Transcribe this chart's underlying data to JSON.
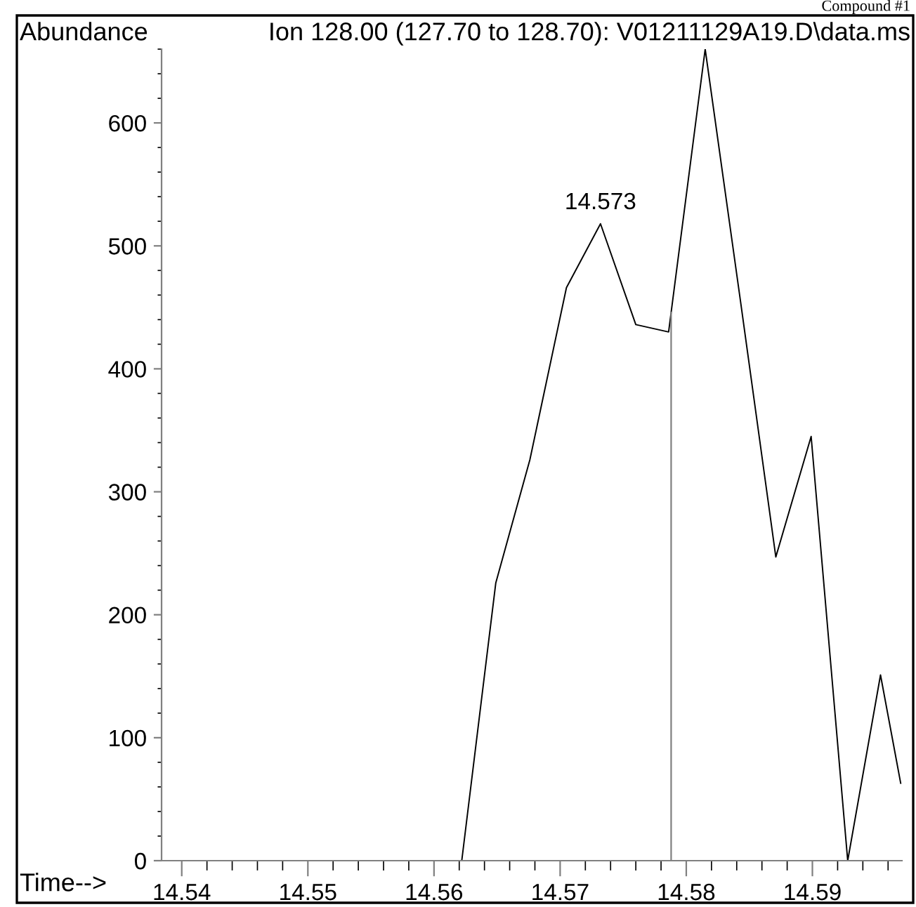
{
  "chart_data": {
    "type": "line",
    "title": "Ion 128.00 (127.70 to 128.70): V01211129A19.D\\data.ms",
    "ylabel": "Abundance",
    "xlabel": "Time-->",
    "annotations": [
      {
        "text": "14.573",
        "x": 14.5732,
        "y": 518
      },
      "Compound #1"
    ],
    "x": [
      14.5384,
      14.5622,
      14.5649,
      14.5676,
      14.5705,
      14.5732,
      14.576,
      14.5786,
      14.5815,
      14.5843,
      14.5871,
      14.5899,
      14.5928,
      14.5954,
      14.597
    ],
    "series": [
      {
        "color": "#000000",
        "values": [
          0,
          0,
          226,
          326,
          466,
          518,
          436,
          430,
          660,
          455,
          247,
          345,
          0,
          151,
          63
        ]
      }
    ],
    "ref_lines": [
      {
        "axis": "x",
        "value": 14.5788,
        "color": "#808080"
      }
    ],
    "xlim": [
      14.5384,
      14.5971
    ],
    "xticks": [
      14.54,
      14.55,
      14.56,
      14.57,
      14.58,
      14.59
    ],
    "ylim": [
      0,
      660
    ],
    "yticks": [
      0,
      100,
      200,
      300,
      400,
      500,
      600
    ],
    "grid": false,
    "legend": false,
    "marker": "none",
    "line_style": "solid"
  }
}
